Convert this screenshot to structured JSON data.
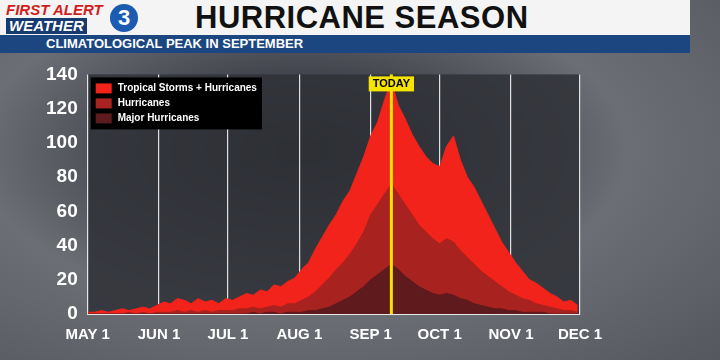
{
  "header": {
    "logo_lines": [
      "FIRST ALERT",
      "WEATHER"
    ],
    "logo_mark": "3"
  },
  "chart_data": {
    "type": "area",
    "title": "HURRICANE SEASON",
    "subtitle": "CLIMATOLOGICAL PEAK IN SEPTEMBER",
    "x": [
      0,
      3,
      6,
      9,
      12,
      15,
      18,
      21,
      24,
      27,
      30,
      33,
      36,
      39,
      42,
      45,
      48,
      51,
      54,
      57,
      60,
      63,
      66,
      69,
      72,
      75,
      78,
      81,
      84,
      87,
      90,
      93,
      96,
      99,
      102,
      105,
      108,
      111,
      114,
      117,
      120,
      123,
      126,
      129,
      132,
      135,
      138,
      141,
      144,
      147,
      150,
      153,
      156,
      159,
      162,
      165,
      168,
      171,
      174,
      177,
      180,
      183,
      186,
      189,
      192,
      195,
      198,
      201,
      204,
      207,
      210,
      213
    ],
    "xlim": [
      0,
      214
    ],
    "xticks": [
      {
        "value": 0,
        "label": "MAY 1"
      },
      {
        "value": 31,
        "label": "JUN 1"
      },
      {
        "value": 61,
        "label": "JUL 1"
      },
      {
        "value": 92,
        "label": "AUG 1"
      },
      {
        "value": 123,
        "label": "SEP 1"
      },
      {
        "value": 153,
        "label": "OCT 1"
      },
      {
        "value": 184,
        "label": "NOV 1"
      },
      {
        "value": 214,
        "label": "DEC 1"
      }
    ],
    "ylim": [
      0,
      140
    ],
    "yticks": [
      0,
      20,
      40,
      60,
      80,
      100,
      120,
      140
    ],
    "grid": "x",
    "legend": "upper left",
    "series": [
      {
        "name": "Tropical Storms + Hurricanes",
        "color": "#f2231b",
        "values": [
          1,
          1,
          2,
          1,
          2,
          3,
          2,
          3,
          4,
          3,
          5,
          7,
          6,
          9,
          8,
          6,
          9,
          7,
          8,
          6,
          9,
          8,
          10,
          12,
          11,
          14,
          13,
          17,
          16,
          19,
          21,
          26,
          30,
          38,
          45,
          52,
          58,
          66,
          72,
          82,
          92,
          104,
          112,
          125,
          136,
          122,
          114,
          105,
          98,
          92,
          88,
          86,
          98,
          104,
          90,
          80,
          74,
          66,
          58,
          50,
          42,
          36,
          30,
          25,
          20,
          18,
          15,
          12,
          10,
          7,
          8,
          5
        ]
      },
      {
        "name": "Hurricanes",
        "color": "#a8231f",
        "values": [
          0,
          0,
          0,
          0,
          0,
          0,
          1,
          0,
          1,
          0,
          1,
          1,
          1,
          2,
          1,
          2,
          1,
          2,
          1,
          2,
          2,
          2,
          3,
          3,
          4,
          3,
          4,
          5,
          4,
          6,
          6,
          8,
          10,
          13,
          17,
          21,
          26,
          30,
          35,
          41,
          48,
          58,
          64,
          70,
          76,
          70,
          64,
          58,
          52,
          48,
          44,
          41,
          44,
          42,
          37,
          33,
          29,
          25,
          22,
          19,
          16,
          13,
          11,
          9,
          8,
          6,
          5,
          4,
          3,
          2,
          2,
          1
        ]
      },
      {
        "name": "Major Hurricanes",
        "color": "#5e1a1d",
        "values": [
          0,
          0,
          0,
          0,
          0,
          0,
          0,
          0,
          0,
          0,
          0,
          0,
          0,
          0,
          0,
          0,
          0,
          0,
          0,
          0,
          0,
          0,
          0,
          0,
          1,
          0,
          1,
          1,
          0,
          1,
          1,
          1,
          2,
          2,
          3,
          4,
          6,
          8,
          10,
          13,
          16,
          20,
          23,
          26,
          29,
          26,
          22,
          19,
          16,
          14,
          12,
          11,
          12,
          11,
          9,
          8,
          6,
          5,
          4,
          3,
          3,
          2,
          2,
          1,
          1,
          1,
          1,
          0,
          0,
          0,
          0,
          0
        ]
      }
    ],
    "annotations": [
      {
        "label": "TODAY",
        "x": 132
      }
    ]
  }
}
